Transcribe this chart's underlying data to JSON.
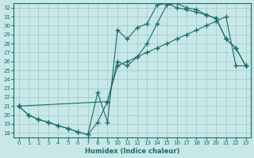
{
  "xlabel": "Humidex (Indice chaleur)",
  "ylabel": "",
  "xlim": [
    -0.5,
    23.5
  ],
  "ylim": [
    17.5,
    32.5
  ],
  "xticks": [
    0,
    1,
    2,
    3,
    4,
    5,
    6,
    7,
    8,
    9,
    10,
    11,
    12,
    13,
    14,
    15,
    16,
    17,
    18,
    19,
    20,
    21,
    22,
    23
  ],
  "yticks": [
    18,
    19,
    20,
    21,
    22,
    23,
    24,
    25,
    26,
    27,
    28,
    29,
    30,
    31,
    32
  ],
  "bg_color": "#c8e8e8",
  "line_color": "#1a6b6b",
  "grid_color": "#a0c8c8",
  "line1": {
    "x": [
      0,
      1,
      2,
      3,
      4,
      5,
      6,
      7,
      8,
      9,
      10,
      11,
      12,
      13,
      14,
      15,
      16,
      17,
      18,
      19,
      20,
      21,
      22,
      23
    ],
    "y": [
      21,
      20,
      19.5,
      19.2,
      18.8,
      18.5,
      18.1,
      17.8,
      19.2,
      21.5,
      25.5,
      26.0,
      26.5,
      27.0,
      27.5,
      28.0,
      28.5,
      29.0,
      29.5,
      30.0,
      30.5,
      31.0,
      25.5,
      25.5
    ]
  },
  "line2": {
    "x": [
      0,
      1,
      2,
      3,
      4,
      5,
      6,
      7,
      8,
      9,
      10,
      11,
      12,
      13,
      14,
      15,
      16,
      17,
      18,
      19,
      20,
      21,
      22,
      23
    ],
    "y": [
      21,
      20,
      19.5,
      19.2,
      18.8,
      18.5,
      18.1,
      17.8,
      22.5,
      19.2,
      29.5,
      28.5,
      29.8,
      30.2,
      32.3,
      32.5,
      32.0,
      31.8,
      31.5,
      31.2,
      30.8,
      28.5,
      27.5,
      25.5
    ]
  },
  "line3": {
    "x": [
      0,
      9,
      10,
      11,
      12,
      13,
      14,
      15,
      16,
      17,
      18,
      19,
      20,
      21,
      22,
      23
    ],
    "y": [
      21,
      21.5,
      26.0,
      25.5,
      26.5,
      28.0,
      30.2,
      32.3,
      32.5,
      32.0,
      31.8,
      31.2,
      30.8,
      28.5,
      27.5,
      25.5
    ]
  }
}
